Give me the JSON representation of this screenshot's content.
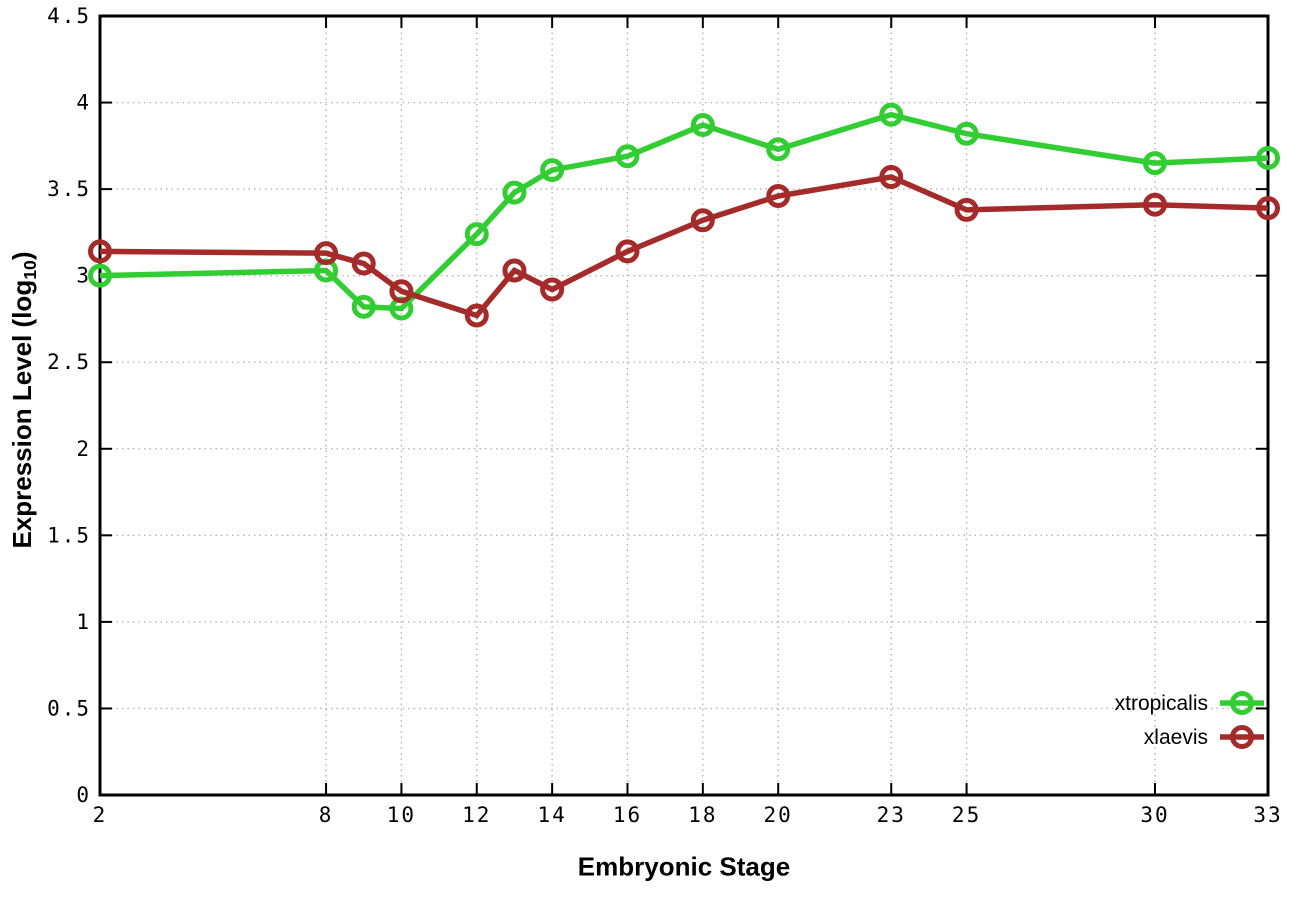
{
  "chart_data": {
    "type": "line",
    "title": "",
    "xlabel": "Embryonic Stage",
    "ylabel": "Expression Level (log10)",
    "ylabel_parts": {
      "pre": "Expression Level (log",
      "sub": "10",
      "post": ")"
    },
    "xlim": [
      2,
      33
    ],
    "ylim": [
      0,
      4.5
    ],
    "xticks": [
      2,
      8,
      10,
      12,
      14,
      16,
      18,
      20,
      23,
      25,
      30,
      33
    ],
    "yticks": [
      0,
      0.5,
      1,
      1.5,
      2,
      2.5,
      3,
      3.5,
      4,
      4.5
    ],
    "grid": true,
    "legend_position": "bottom-right",
    "x": [
      2,
      8,
      9,
      10,
      12,
      13,
      14,
      16,
      18,
      20,
      23,
      25,
      30,
      33
    ],
    "series": [
      {
        "name": "xtropicalis",
        "color": "#32CD32",
        "values": [
          3.0,
          3.03,
          2.82,
          2.81,
          3.24,
          3.48,
          3.61,
          3.69,
          3.87,
          3.73,
          3.93,
          3.82,
          3.65,
          3.68
        ]
      },
      {
        "name": "xlaevis",
        "color": "#A52A2A",
        "values": [
          3.14,
          3.13,
          3.07,
          2.91,
          2.77,
          3.03,
          2.92,
          3.14,
          3.32,
          3.46,
          3.57,
          3.38,
          3.41,
          3.39
        ]
      }
    ]
  }
}
